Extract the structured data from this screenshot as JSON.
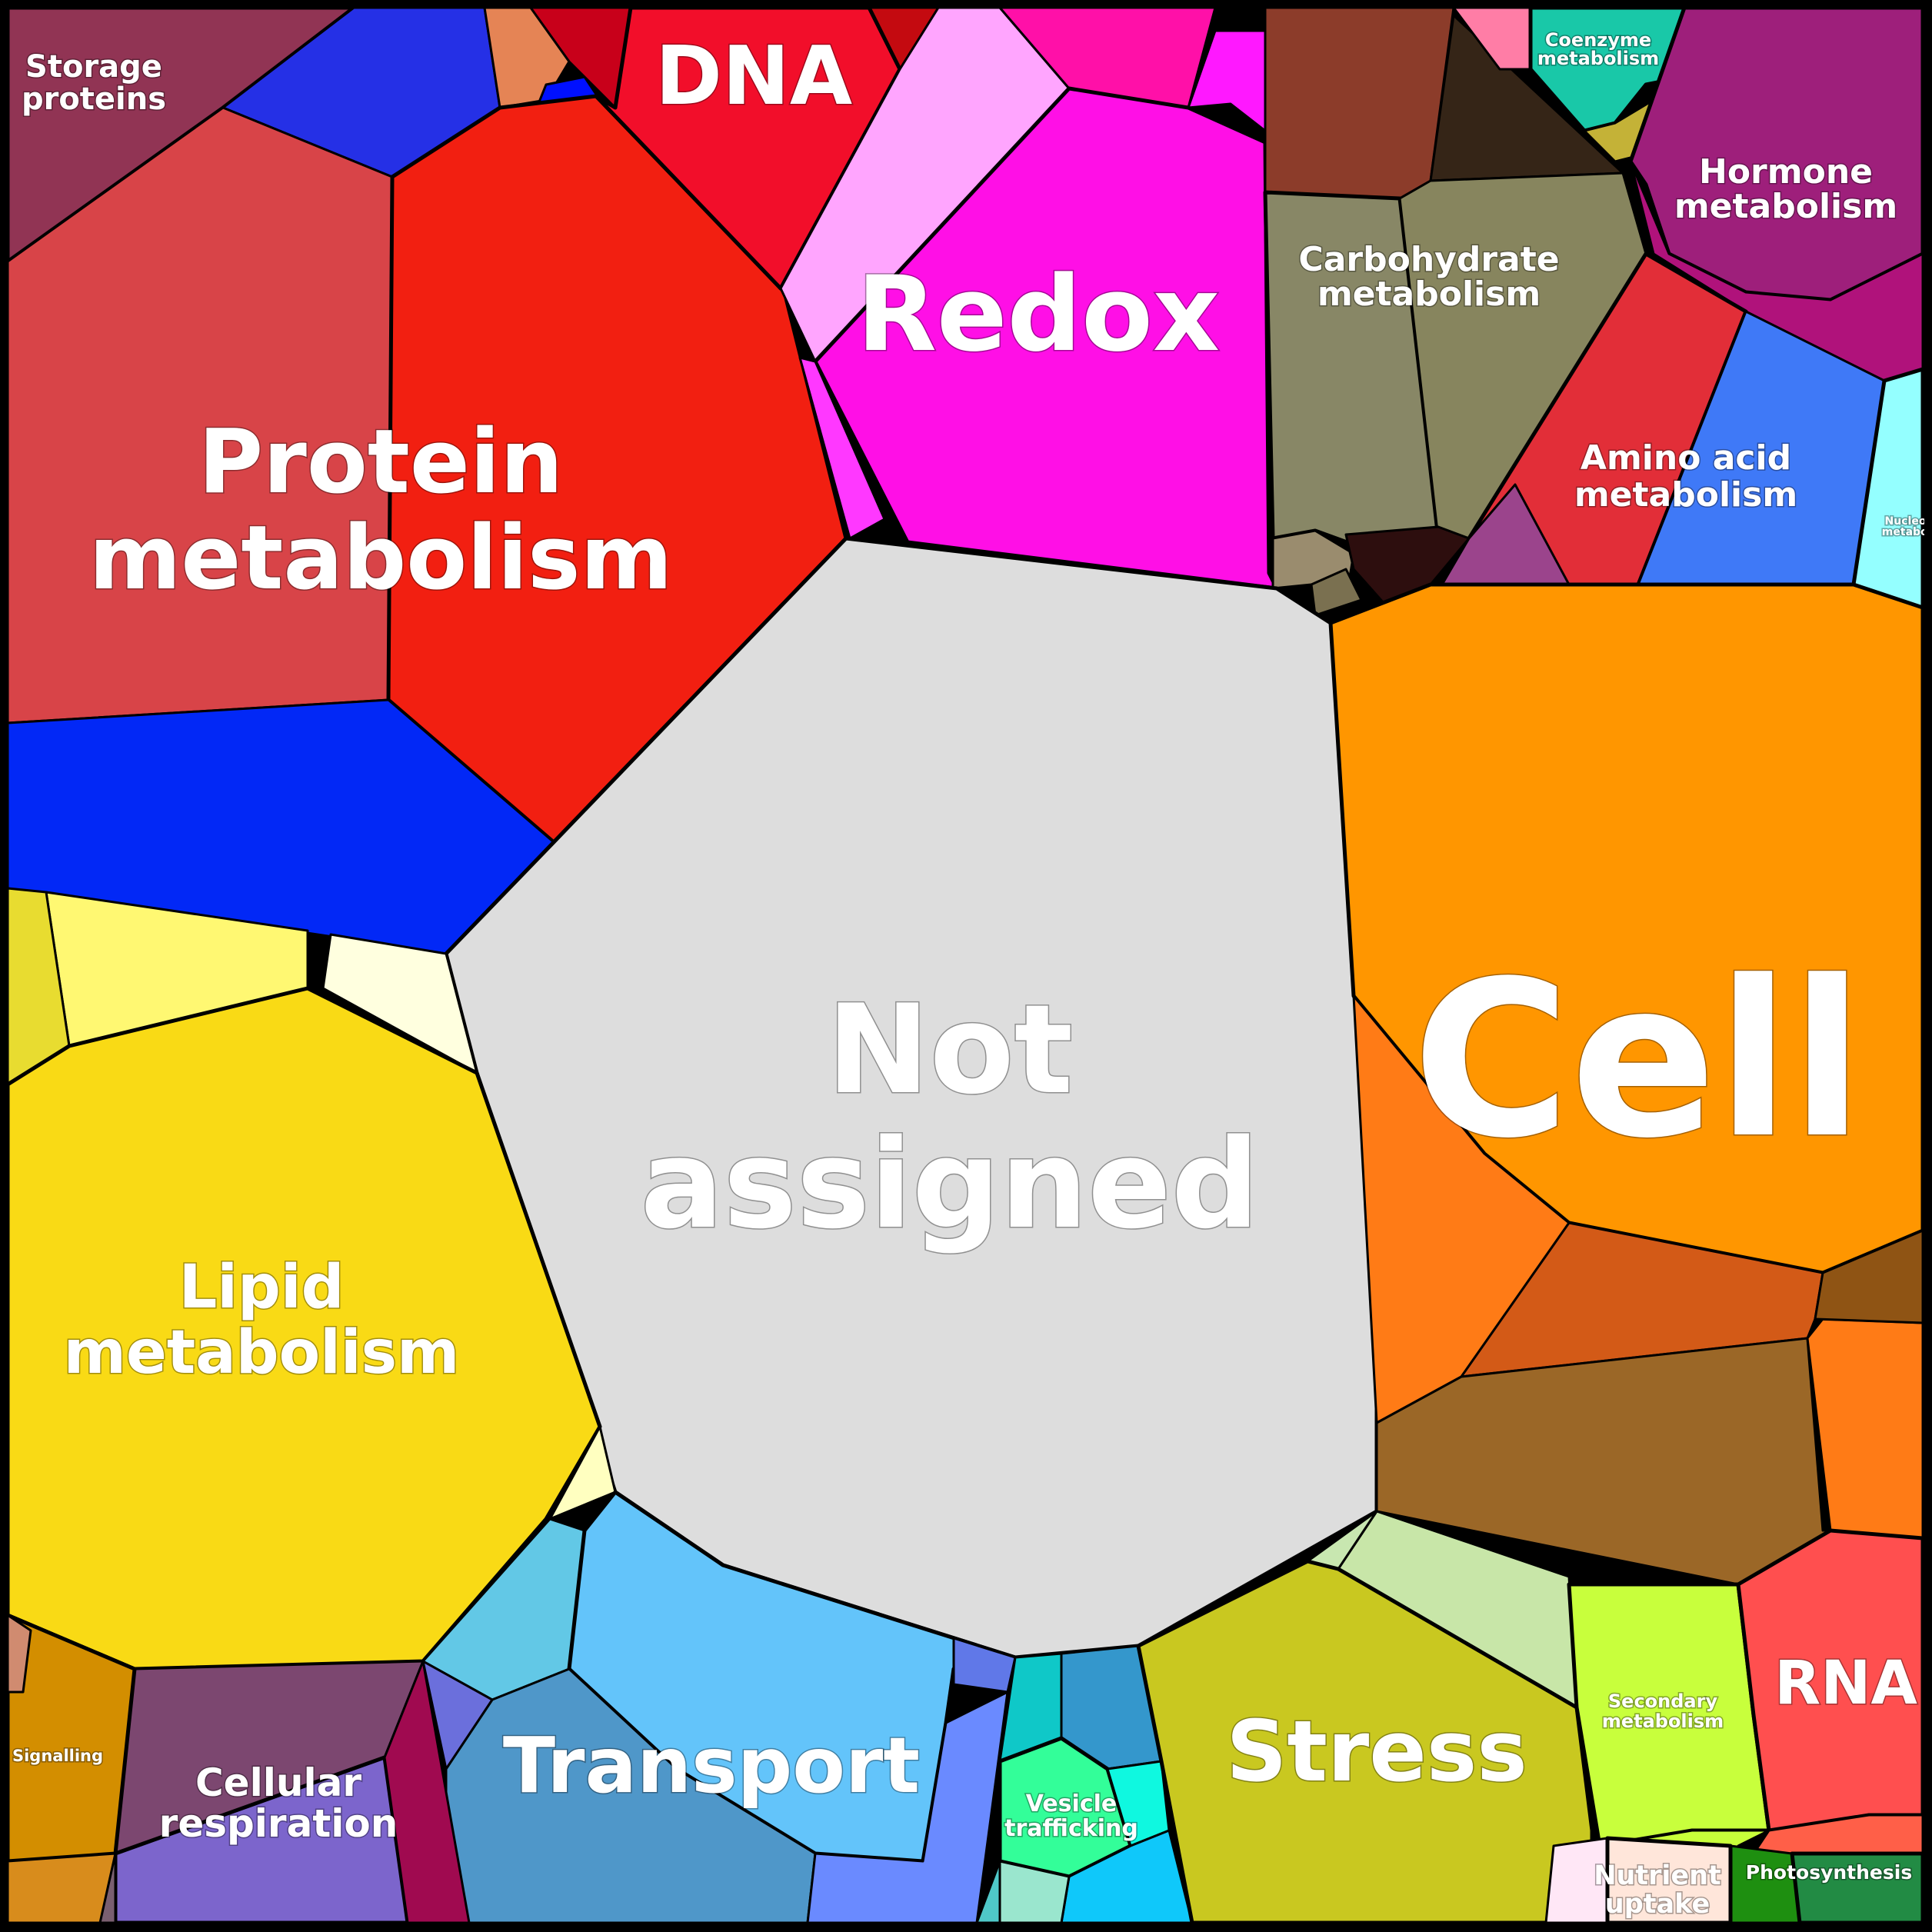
{
  "title": "",
  "colors": {
    "border": "#000000",
    "not_assigned": "#DDDDDD",
    "cell": "#FF9600",
    "protein": "#F21F11",
    "lipid": "#F9DA15",
    "redox": "#FF0FE6",
    "dna": "#F20E2A",
    "transport": "#63C4FA",
    "stress": "#C9C820",
    "rna": "#FF4F4F",
    "carbohydrate": "#888766",
    "hormone": "#9E1F7B",
    "amino_acid": "#E22E38",
    "cellular_respiration": "#7C65CC",
    "secondary": "#C8FF3C",
    "photosynthesis": "#228B44",
    "vesicle": "#33FE99",
    "signalling": "#D38E00",
    "storage": "#913454",
    "nutrient": "#FFE6DA",
    "coenzyme": "#19C8A8",
    "nucleotide": "#94FFFF"
  },
  "labels": {
    "not_assigned": [
      "Not",
      "assigned"
    ],
    "cell": [
      "Cell"
    ],
    "protein": [
      "Protein",
      "metabolism"
    ],
    "lipid": [
      "Lipid",
      "metabolism"
    ],
    "redox": [
      "Redox"
    ],
    "dna": [
      "DNA"
    ],
    "transport": [
      "Transport"
    ],
    "stress": [
      "Stress"
    ],
    "rna": [
      "RNA"
    ],
    "carbohydrate": [
      "Carbohydrate",
      "metabolism"
    ],
    "hormone": [
      "Hormone",
      "metabolism"
    ],
    "amino_acid": [
      "Amino acid",
      "metabolism"
    ],
    "cellular_respiration": [
      "Cellular",
      "respiration"
    ],
    "secondary": [
      "Secondary",
      "metabolism"
    ],
    "photosynthesis": [
      "Photosynthesis"
    ],
    "vesicle": [
      "Vesicle",
      "trafficking"
    ],
    "signalling": [
      "Signalling"
    ],
    "storage": [
      "Storage",
      "proteins"
    ],
    "nutrient": [
      "Nutrient",
      "uptake"
    ],
    "coenzyme": [
      "Coenzyme",
      "metabolism"
    ],
    "nucleotide": [
      "Nucleotide",
      "metabolism"
    ]
  }
}
